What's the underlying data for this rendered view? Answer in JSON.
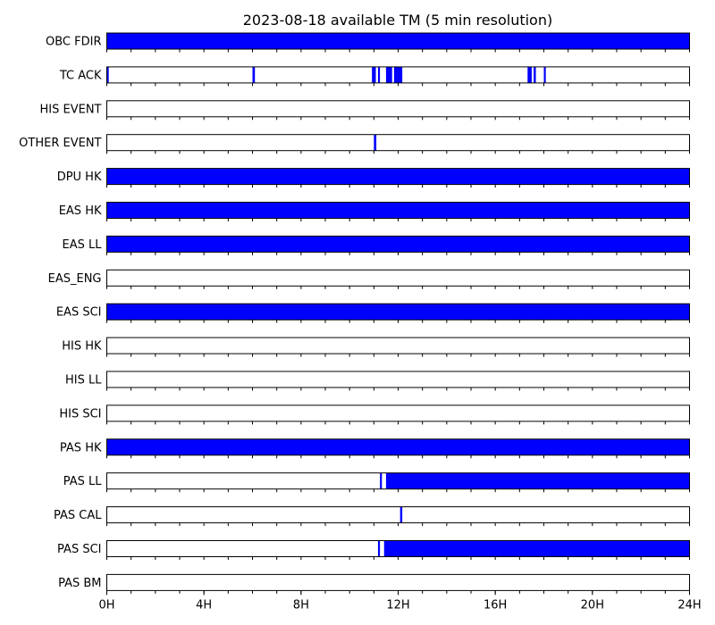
{
  "chart_data": {
    "type": "timeline",
    "title": "2023-08-18 available TM (5 min resolution)",
    "x_unit": "hour",
    "xlim": [
      0,
      24
    ],
    "x_ticks": [
      {
        "value": 0,
        "label": "0H"
      },
      {
        "value": 4,
        "label": "4H"
      },
      {
        "value": 8,
        "label": "8H"
      },
      {
        "value": 12,
        "label": "12H"
      },
      {
        "value": 16,
        "label": "16H"
      },
      {
        "value": 20,
        "label": "20H"
      },
      {
        "value": 24,
        "label": "24H"
      }
    ],
    "minor_tick_step_hours": 1,
    "fill_color": "#0000ff",
    "grid": false,
    "series": [
      {
        "name": "OBC FDIR",
        "intervals": [
          [
            0,
            24
          ]
        ]
      },
      {
        "name": "TC ACK",
        "intervals": [
          [
            0.0,
            0.08
          ],
          [
            6.0,
            6.1
          ],
          [
            10.92,
            11.08
          ],
          [
            11.17,
            11.25
          ],
          [
            11.5,
            11.75
          ],
          [
            11.83,
            12.17
          ],
          [
            17.33,
            17.5
          ],
          [
            17.58,
            17.67
          ],
          [
            18.0,
            18.08
          ]
        ]
      },
      {
        "name": "HIS EVENT",
        "intervals": []
      },
      {
        "name": "OTHER EVENT",
        "intervals": [
          [
            11.0,
            11.1
          ]
        ]
      },
      {
        "name": "DPU HK",
        "intervals": [
          [
            0,
            24
          ]
        ]
      },
      {
        "name": "EAS HK",
        "intervals": [
          [
            0,
            24
          ]
        ]
      },
      {
        "name": "EAS LL",
        "intervals": [
          [
            0,
            24
          ]
        ]
      },
      {
        "name": "EAS_ENG",
        "intervals": []
      },
      {
        "name": "EAS SCI",
        "intervals": [
          [
            0,
            24
          ]
        ]
      },
      {
        "name": "HIS HK",
        "intervals": []
      },
      {
        "name": "HIS LL",
        "intervals": []
      },
      {
        "name": "HIS SCI",
        "intervals": []
      },
      {
        "name": "PAS HK",
        "intervals": [
          [
            0,
            24
          ]
        ]
      },
      {
        "name": "PAS LL",
        "intervals": [
          [
            11.25,
            11.33
          ],
          [
            11.5,
            24
          ]
        ]
      },
      {
        "name": "PAS CAL",
        "intervals": [
          [
            12.08,
            12.17
          ]
        ]
      },
      {
        "name": "PAS SCI",
        "intervals": [
          [
            11.17,
            11.25
          ],
          [
            11.42,
            24
          ]
        ]
      },
      {
        "name": "PAS BM",
        "intervals": []
      }
    ]
  }
}
